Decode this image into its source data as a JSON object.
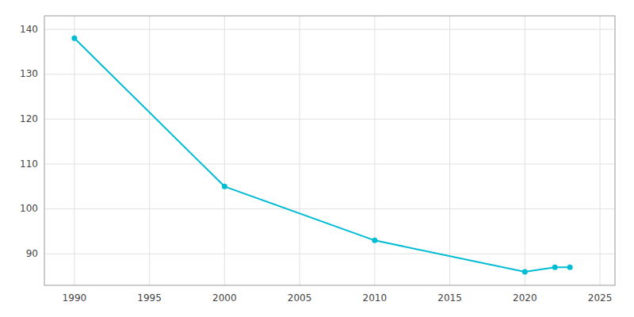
{
  "chart_data": {
    "type": "line",
    "x": [
      1990,
      2000,
      2010,
      2020,
      2022,
      2023
    ],
    "values": [
      138,
      105,
      93,
      86,
      87,
      87
    ],
    "color": "#00BCD4",
    "marker": "circle",
    "xlim": [
      1988,
      2026
    ],
    "ylim": [
      83,
      143
    ],
    "xticks": [
      1990,
      1995,
      2000,
      2005,
      2010,
      2015,
      2020,
      2025
    ],
    "yticks": [
      90,
      100,
      110,
      120,
      130,
      140
    ],
    "grid": true
  }
}
